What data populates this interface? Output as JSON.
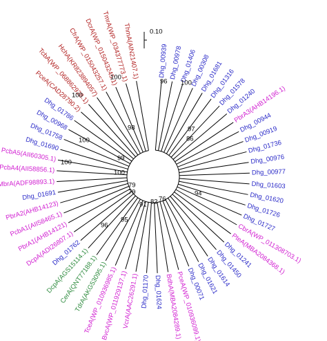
{
  "scale_bar": "0.10",
  "leaves": [
    {
      "label": "Dhg_00939",
      "color": "#2b2bc8"
    },
    {
      "label": "Dhg_00978",
      "color": "#2b2bc8"
    },
    {
      "label": "Dhg_01406",
      "color": "#2b2bc8"
    },
    {
      "label": "Dhg_00308",
      "color": "#2b2bc8"
    },
    {
      "label": "Dhg_01681",
      "color": "#2b2bc8"
    },
    {
      "label": "Dhg_01316",
      "color": "#2b2bc8"
    },
    {
      "label": "Dhg_01578",
      "color": "#2b2bc8"
    },
    {
      "label": "Dhg_01240",
      "color": "#2b2bc8"
    },
    {
      "label": "PbrA3(AHB14196.1)",
      "color": "#d11fd1"
    },
    {
      "label": "Dhg_00944",
      "color": "#2b2bc8"
    },
    {
      "label": "Dhg_00919",
      "color": "#2b2bc8"
    },
    {
      "label": "Dhg_01736",
      "color": "#2b2bc8"
    },
    {
      "label": "Dhg_00976",
      "color": "#2b2bc8"
    },
    {
      "label": "Dhg_00977",
      "color": "#2b2bc8"
    },
    {
      "label": "Dhg_01603",
      "color": "#2b2bc8"
    },
    {
      "label": "Dhg_01620",
      "color": "#2b2bc8"
    },
    {
      "label": "Dhg_01726",
      "color": "#2b2bc8"
    },
    {
      "label": "Dhg_01727",
      "color": "#2b2bc8"
    },
    {
      "label": "CbrA(WP_011308703.1)",
      "color": "#d11fd1"
    },
    {
      "label": "PteA(MBA2084368.1)",
      "color": "#d11fd1"
    },
    {
      "label": "Dhg_01241",
      "color": "#2b2bc8"
    },
    {
      "label": "Dhg_01450",
      "color": "#2b2bc8"
    },
    {
      "label": "Dhg_01614",
      "color": "#2b2bc8"
    },
    {
      "label": "Dhg_01621",
      "color": "#2b2bc8"
    },
    {
      "label": "Dhg_00071",
      "color": "#2b2bc8"
    },
    {
      "label": "PceA(WP_010936099.1)",
      "color": "#d11fd1"
    },
    {
      "label": "BdhA(MBA2084289.1)",
      "color": "#d11fd1"
    },
    {
      "label": "Dhg_01624",
      "color": "#2b2bc8"
    },
    {
      "label": "Dhg_01170",
      "color": "#2b2bc8"
    },
    {
      "label": "VcrA(AAC26291.1)",
      "color": "#d11fd1"
    },
    {
      "label": "BvcA(WP_011929137.1)",
      "color": "#d11fd1"
    },
    {
      "label": "TceA(WP_010936985.1)",
      "color": "#d11fd1"
    },
    {
      "label": "TdrA(AKG53095.1)",
      "color": "#2e8b3e"
    },
    {
      "label": "CerA(QNT77188.1)",
      "color": "#2e8b3e"
    },
    {
      "label": "DcpA(AGS15114.1)",
      "color": "#2e8b3e"
    },
    {
      "label": "Dhg_01762",
      "color": "#2b2bc8"
    },
    {
      "label": "DcpA(ADI26807.1)",
      "color": "#d11fd1"
    },
    {
      "label": "PbrA1(AHB14121)",
      "color": "#d11fd1"
    },
    {
      "label": "PcbA1(AII58465.1)",
      "color": "#d11fd1"
    },
    {
      "label": "PbrA2(AHB14123)",
      "color": "#d11fd1"
    },
    {
      "label": "Dhg_01691",
      "color": "#2b2bc8"
    },
    {
      "label": "MbrA(ADF98893.1)",
      "color": "#d11fd1"
    },
    {
      "label": "PcbA4(AII58856.1)",
      "color": "#d11fd1"
    },
    {
      "label": "PcbA5(AII60305.1)",
      "color": "#d11fd1"
    },
    {
      "label": "Dhg_01690",
      "color": "#2b2bc8"
    },
    {
      "label": "Dhg_01758",
      "color": "#2b2bc8"
    },
    {
      "label": "Dhg_00968",
      "color": "#2b2bc8"
    },
    {
      "label": "Dhg_01786",
      "color": "#2b2bc8"
    },
    {
      "label": "PceA(CAD28790.2)",
      "color": "#b22222"
    },
    {
      "label": "TcbA(WP_068862928.1)",
      "color": "#b22222"
    },
    {
      "label": "HchA(KR823894057)",
      "color": "#b22222"
    },
    {
      "label": "CfrA(WP_015043257.1)",
      "color": "#b22222"
    },
    {
      "label": "DcrA(WP_015043245.1)",
      "color": "#b22222"
    },
    {
      "label": "TmrA(WP_034377773.1)",
      "color": "#b22222"
    },
    {
      "label": "ThmA(AIN21407.1)",
      "color": "#b22222"
    }
  ],
  "bootstrap": [
    100,
    100,
    96,
    100,
    97,
    86,
    98,
    100,
    100,
    99,
    100,
    79,
    79,
    94,
    95,
    96,
    91,
    76,
    82
  ]
}
